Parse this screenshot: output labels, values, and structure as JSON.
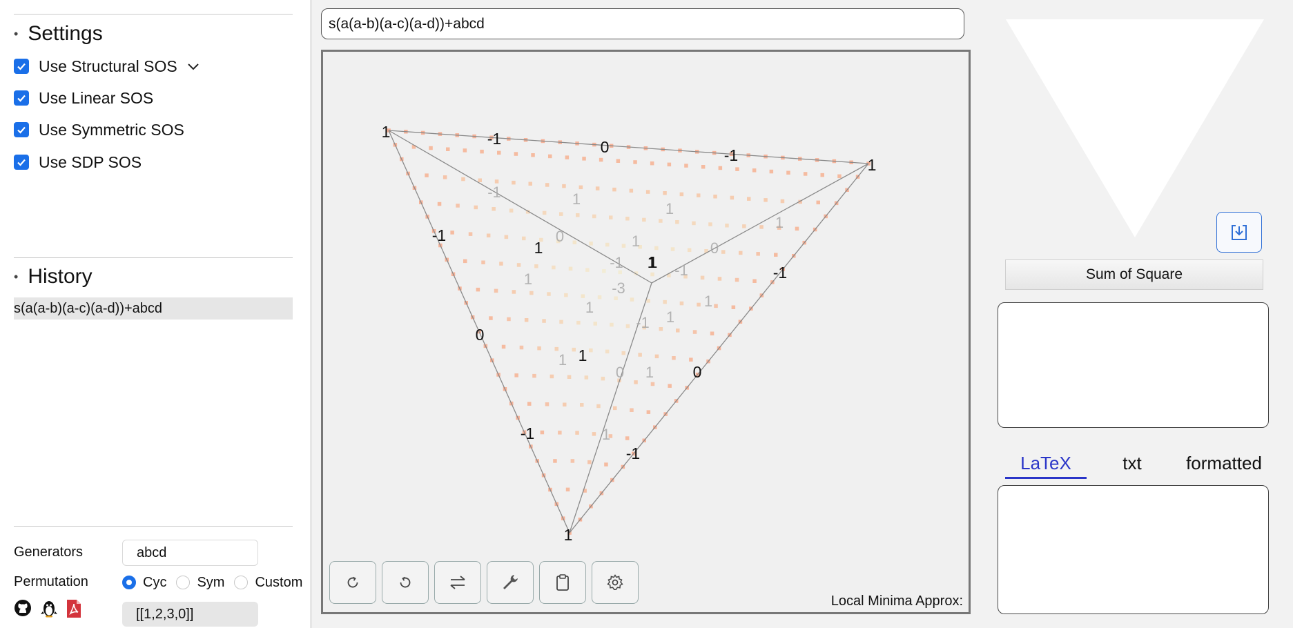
{
  "sidebar": {
    "settings_title": "Settings",
    "options": [
      {
        "label": "Use Structural SOS",
        "checked": true,
        "expandable": true
      },
      {
        "label": "Use Linear SOS",
        "checked": true
      },
      {
        "label": "Use Symmetric SOS",
        "checked": true
      },
      {
        "label": "Use SDP SOS",
        "checked": true
      }
    ],
    "history_title": "History",
    "history_items": [
      "s(a(a-b)(a-c)(a-d))+abcd"
    ],
    "generators_label": "Generators",
    "generators_value": "abcd",
    "permutation_label": "Permutation",
    "permutation_options": [
      {
        "label": "Cyc",
        "selected": true
      },
      {
        "label": "Sym",
        "selected": false
      },
      {
        "label": "Custom",
        "selected": false
      }
    ],
    "permutation_value": "[[1,2,3,0]]",
    "links": [
      "github-icon",
      "qq-penguin-icon",
      "pdf-icon"
    ]
  },
  "editor": {
    "expression": "s(a(a-b)(a-c)(a-d))+abcd"
  },
  "canvas": {
    "labels": {
      "v1": "1",
      "v2": "1",
      "v3": "1",
      "v4": "1",
      "e12a": "-1",
      "e12b": "0",
      "e12c": "-1",
      "e13a": "-1",
      "e13b": "0",
      "e13c": "-1",
      "e23a": "-1",
      "e23b": "0",
      "e23c": "-1",
      "i1": "1",
      "i2": "1",
      "i3": "1",
      "g1": "-1",
      "g2": "1",
      "g3": "1",
      "g4": "0",
      "g5": "1",
      "g6": "-1",
      "g7": "1",
      "g8": "0",
      "g9": "-1",
      "g10": "1",
      "g11": "-3",
      "g12": "1",
      "g13": "1",
      "g14": "1",
      "g15": "-1",
      "g16": "1",
      "g17": "0",
      "g18": "1",
      "g19": "1"
    },
    "toolbar": [
      "rotate-cw-icon",
      "rotate-ccw-icon",
      "swap-icon",
      "wrench-icon",
      "clipboard-icon",
      "gear-icon"
    ],
    "minima_label": "Local Minima Approx:"
  },
  "right": {
    "sos_button": "Sum of Square",
    "tabs": [
      {
        "label": "LaTeX",
        "active": true
      },
      {
        "label": "txt",
        "active": false
      },
      {
        "label": "formatted",
        "active": false
      }
    ]
  }
}
